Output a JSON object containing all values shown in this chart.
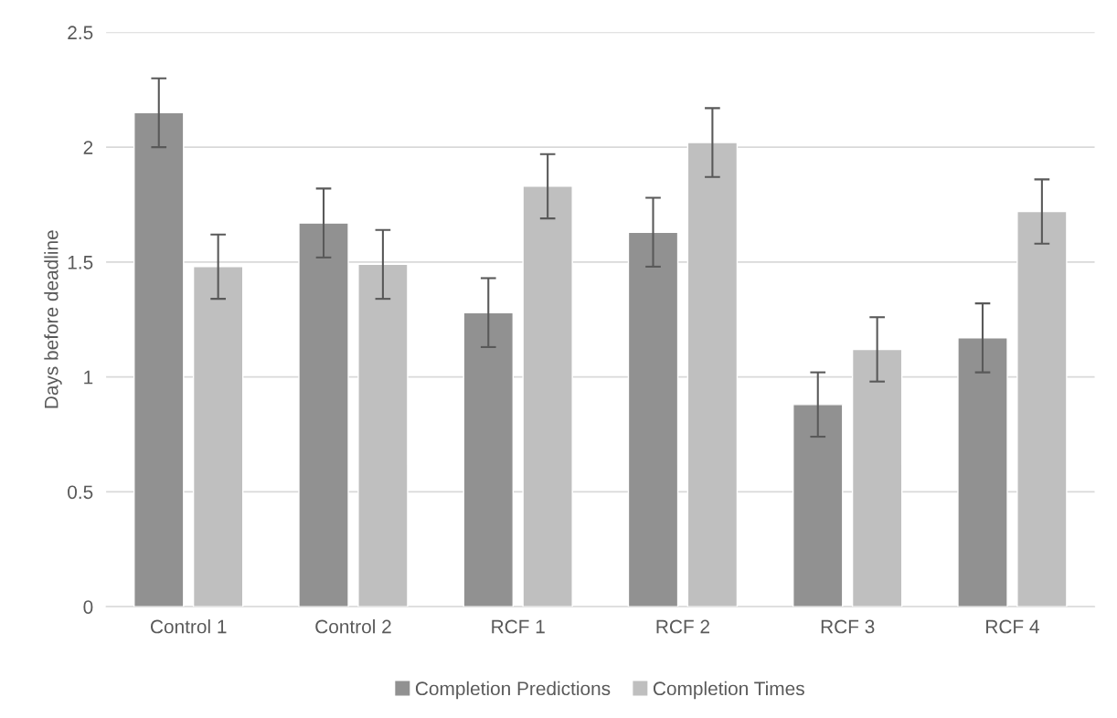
{
  "chart_data": {
    "type": "bar",
    "ylabel": "Days before deadline",
    "categories": [
      "Control 1",
      "Control 2",
      "RCF 1",
      "RCF 2",
      "RCF 3",
      "RCF 4"
    ],
    "series": [
      {
        "name": "Completion Predictions",
        "color": "#919191",
        "values": [
          2.15,
          1.67,
          1.28,
          1.63,
          0.88,
          1.17
        ],
        "errors": [
          0.15,
          0.15,
          0.15,
          0.15,
          0.14,
          0.15
        ]
      },
      {
        "name": "Completion Times",
        "color": "#bfbfbf",
        "values": [
          1.48,
          1.49,
          1.83,
          2.02,
          1.12,
          1.72
        ],
        "errors": [
          0.14,
          0.15,
          0.14,
          0.15,
          0.14,
          0.14
        ]
      }
    ],
    "ylim": [
      0,
      2.5
    ],
    "yticks": [
      0,
      0.5,
      1,
      1.5,
      2,
      2.5
    ],
    "grid": "y",
    "legend": "bottom"
  }
}
